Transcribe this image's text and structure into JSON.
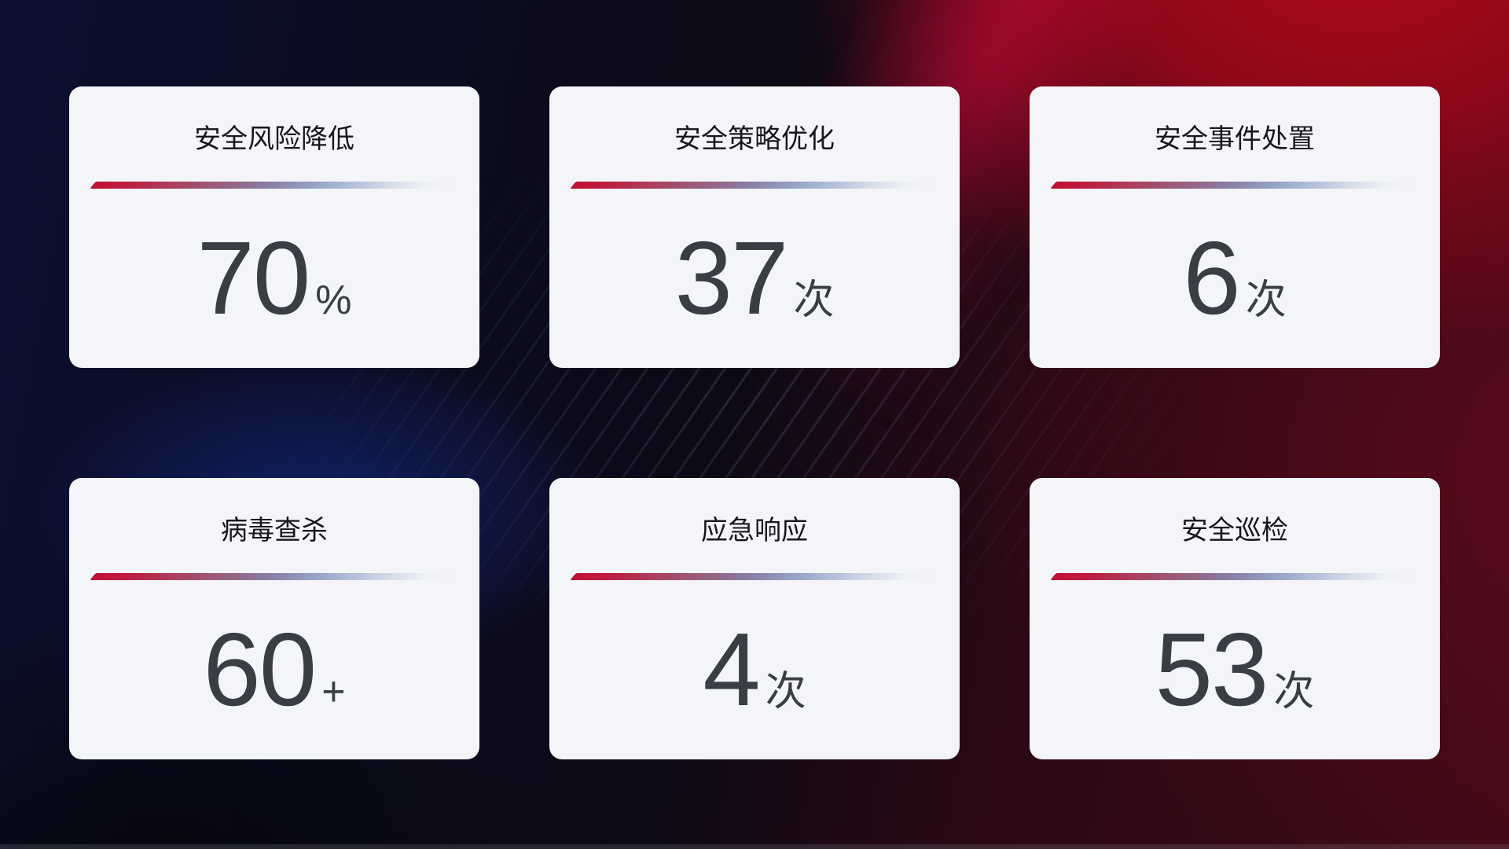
{
  "page": {
    "theme": {
      "background_navy": "#0c1030",
      "background_red": "#b20a18",
      "glow_blue": "#1c3ec8",
      "card_background": "#f4f5f8",
      "title_color": "#16171b",
      "number_color": "#3a3d43",
      "divider_gradient_start": "#c00f35",
      "divider_gradient_end": "#d6dde9"
    }
  },
  "cards": [
    {
      "title": "安全风险降低",
      "value": "70",
      "unit": "%"
    },
    {
      "title": "安全策略优化",
      "value": "37",
      "unit": "次"
    },
    {
      "title": "安全事件处置",
      "value": "6",
      "unit": "次"
    },
    {
      "title": "病毒查杀",
      "value": "60",
      "unit": "+"
    },
    {
      "title": "应急响应",
      "value": "4",
      "unit": "次"
    },
    {
      "title": "安全巡检",
      "value": "53",
      "unit": "次"
    }
  ]
}
